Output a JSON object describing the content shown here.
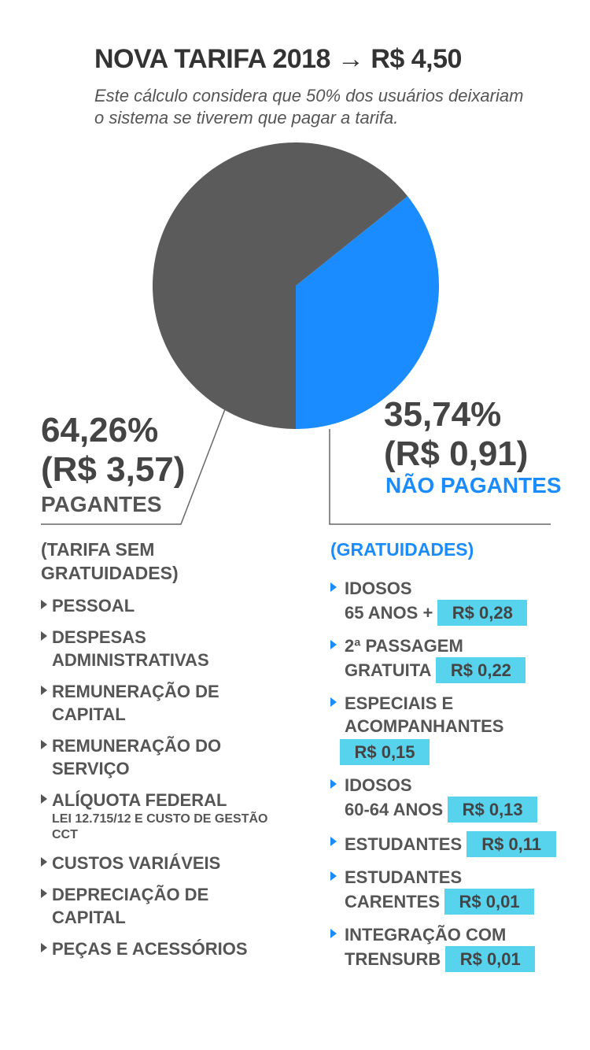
{
  "header": {
    "title": "NOVA TARIFA 2018 → R$ 4,50",
    "subtitle": "Este cálculo considera que 50% dos usuários deixariam o sistema se tiverem que pagar a tarifa."
  },
  "chart_data": {
    "type": "pie",
    "title": "NOVA TARIFA 2018 → R$ 4,50",
    "slices": [
      {
        "label": "PAGANTES",
        "value": 64.26,
        "amount": "R$ 3,57",
        "color": "#5b5b5b"
      },
      {
        "label": "NÃO PAGANTES",
        "value": 35.74,
        "amount": "R$ 0,91",
        "color": "#1a8cff"
      }
    ]
  },
  "left": {
    "percent": "64,26%",
    "amount": "(R$ 3,57)",
    "caption": "PAGANTES",
    "section": "(TARIFA SEM GRATUIDADES)",
    "items": [
      {
        "text": "PESSOAL"
      },
      {
        "text": "DESPESAS ADMINISTRATIVAS"
      },
      {
        "text": "REMUNERAÇÃO DE CAPITAL"
      },
      {
        "text": "REMUNERAÇÃO DO SERVIÇO"
      },
      {
        "text": "ALÍQUOTA FEDERAL",
        "sub": "LEI 12.715/12 E CUSTO DE GESTÃO CCT"
      },
      {
        "text": "CUSTOS VARIÁVEIS"
      },
      {
        "text": "DEPRECIAÇÃO DE CAPITAL"
      },
      {
        "text": "PEÇAS E ACESSÓRIOS"
      }
    ]
  },
  "right": {
    "percent": "35,74%",
    "amount": "(R$ 0,91)",
    "caption": "NÃO PAGANTES",
    "section": "(GRATUIDADES)",
    "items": [
      {
        "line1": "IDOSOS",
        "line2": "65 ANOS +",
        "value": "R$ 0,28"
      },
      {
        "line1": "2ª PASSAGEM",
        "line2": "GRATUITA",
        "value": "R$ 0,22"
      },
      {
        "line1": "ESPECIAIS E",
        "line2": "ACOMPANHANTES",
        "value": "R$ 0,15",
        "solo": true
      },
      {
        "line1": "IDOSOS",
        "line2": "60-64 ANOS",
        "value": "R$ 0,13"
      },
      {
        "line1": "",
        "line2": "ESTUDANTES",
        "value": "R$ 0,11"
      },
      {
        "line1": "ESTUDANTES",
        "line2": "CARENTES",
        "value": "R$ 0,01"
      },
      {
        "line1": "INTEGRAÇÃO COM",
        "line2": "TRENSURB",
        "value": "R$ 0,01"
      }
    ]
  }
}
